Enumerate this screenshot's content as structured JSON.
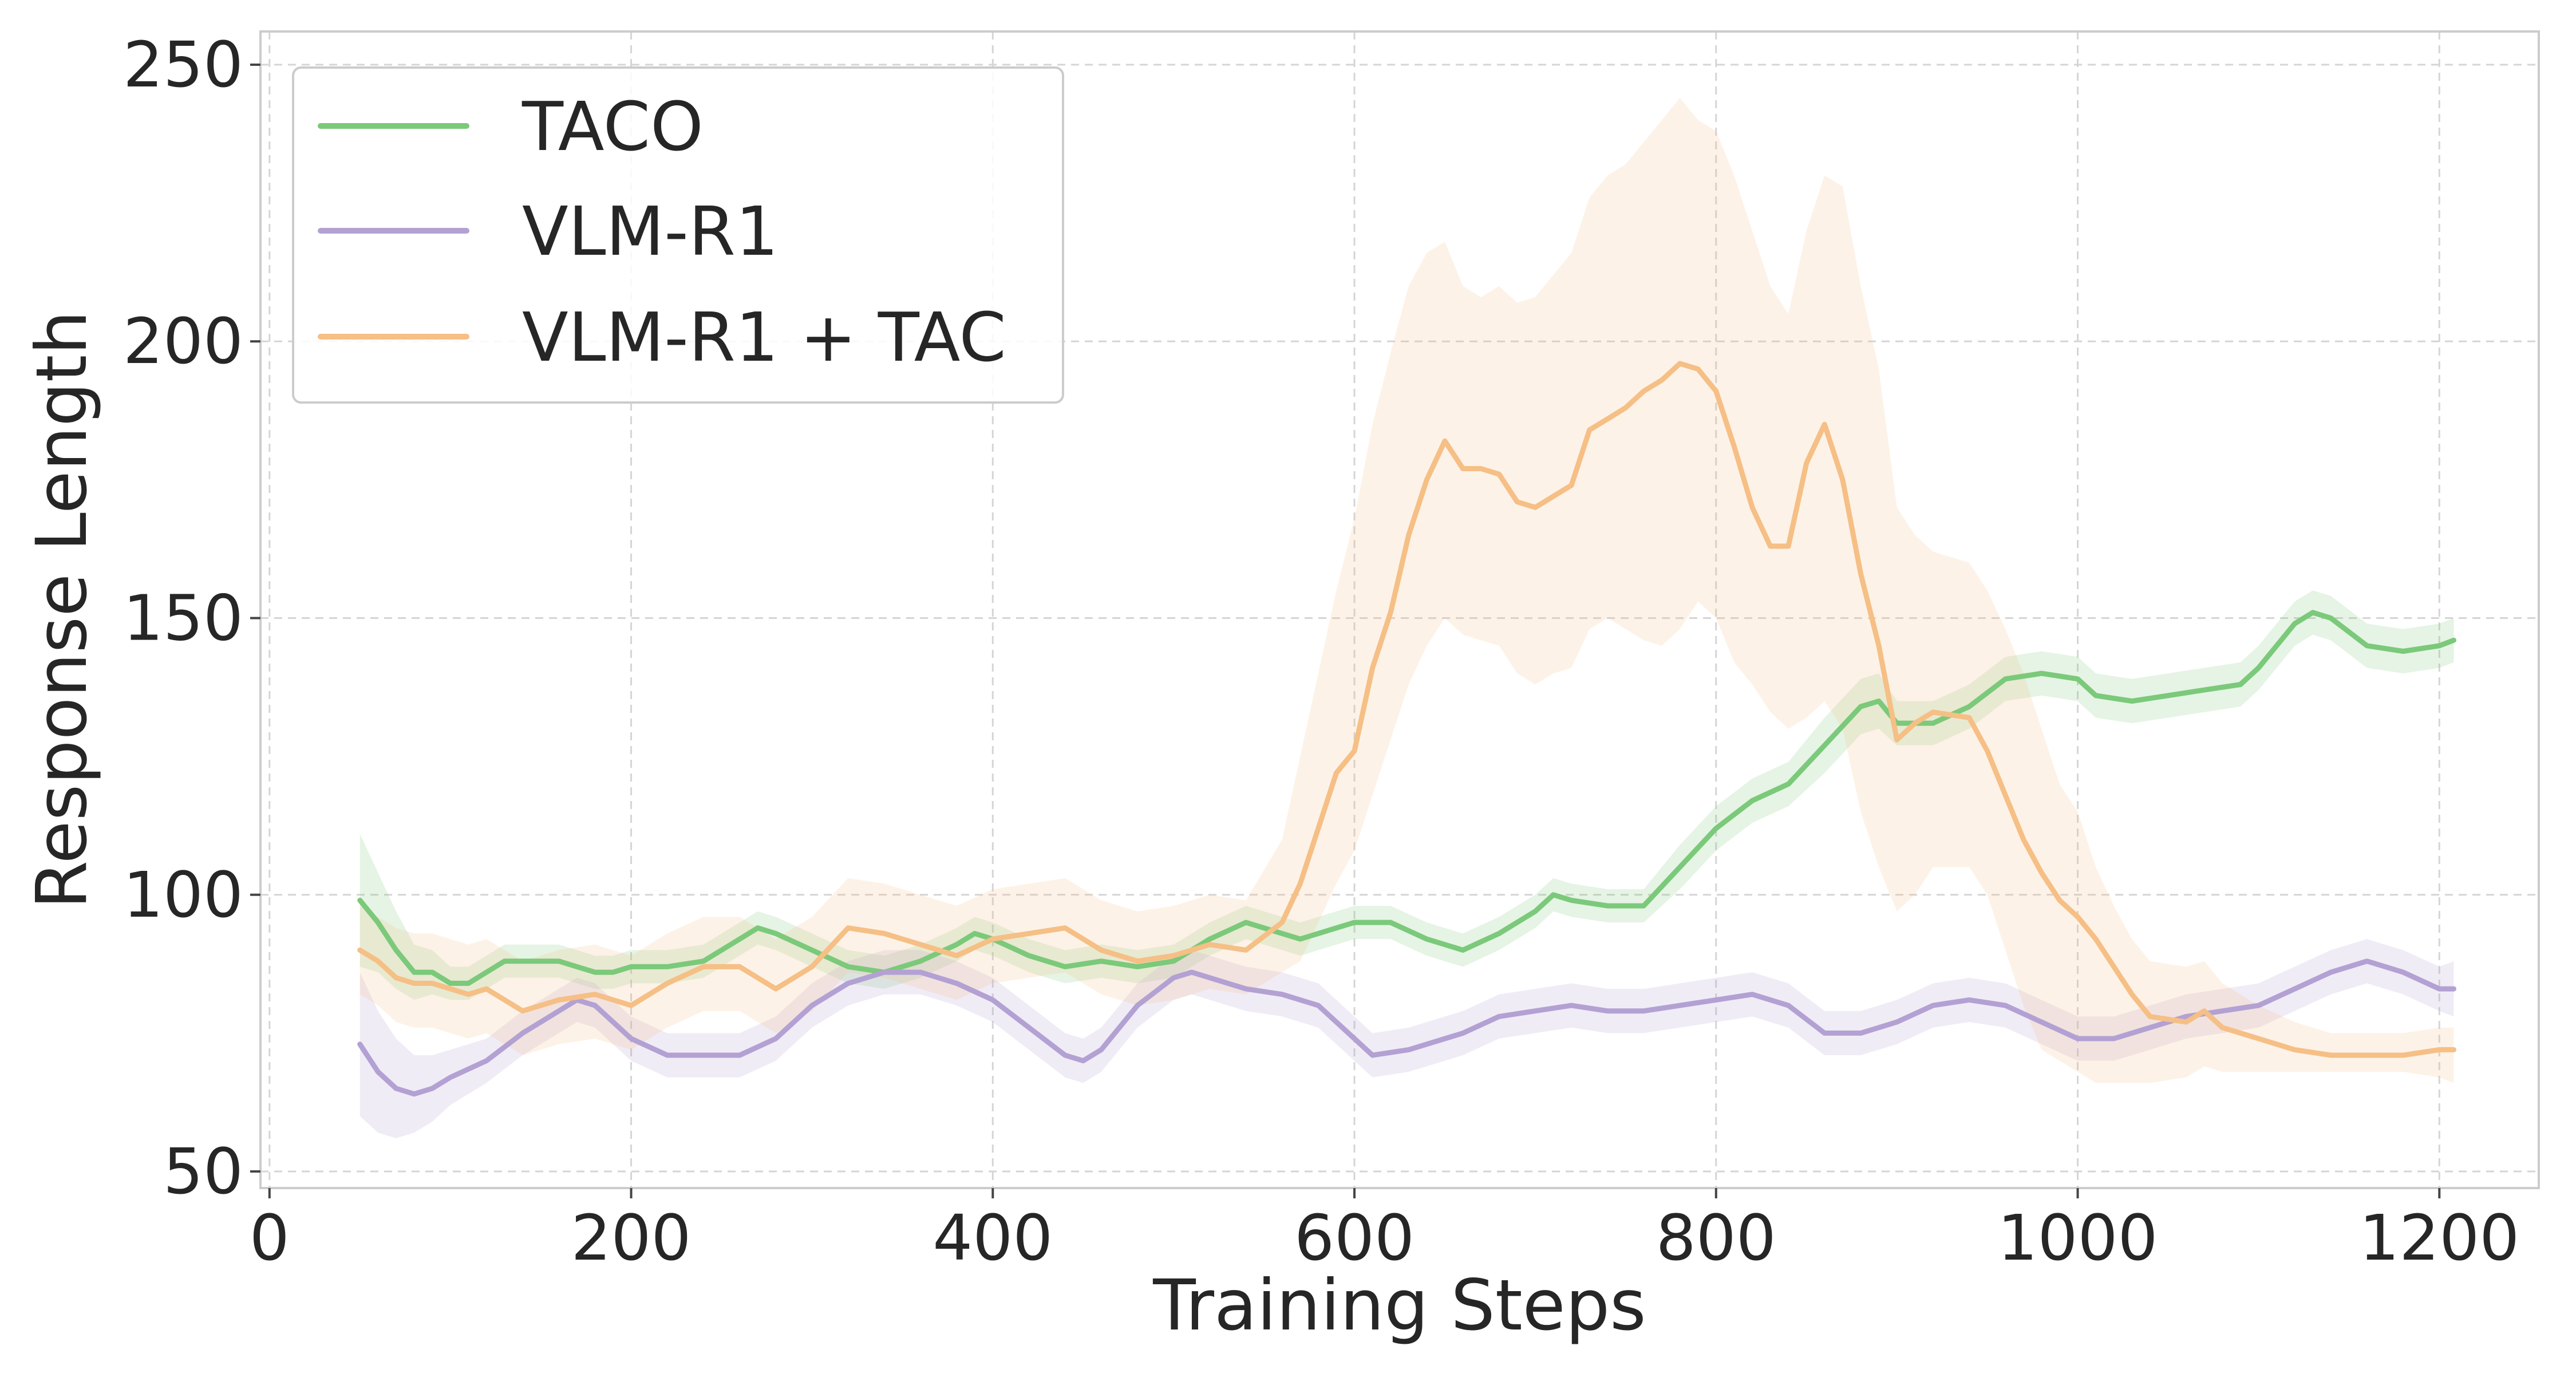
{
  "colors": {
    "TACO": "#7bc97a",
    "VLM-R1": "#b3a1d3",
    "VLM-R1 + TAC": "#f5bf85",
    "text": "#262626",
    "grid": "#d5d5d5"
  },
  "chart_data": {
    "type": "line",
    "title": "",
    "xlabel": "Training Steps",
    "ylabel": "Response Length",
    "xlim": [
      -5,
      1255
    ],
    "ylim": [
      47,
      256
    ],
    "xticks": [
      0,
      200,
      400,
      600,
      800,
      1000,
      1200
    ],
    "yticks": [
      50,
      100,
      150,
      200,
      250
    ],
    "x_tick_labels": [
      "0",
      "200",
      "400",
      "600",
      "800",
      "1000",
      "1200"
    ],
    "y_tick_labels": [
      "50",
      "100",
      "150",
      "200",
      "250"
    ],
    "grid": true,
    "legend_position": "top-left",
    "series": [
      {
        "name": "TACO",
        "band": "std",
        "points": [
          [
            50,
            99,
            12
          ],
          [
            60,
            95,
            9
          ],
          [
            70,
            90,
            7
          ],
          [
            80,
            86,
            5
          ],
          [
            90,
            86,
            4
          ],
          [
            100,
            84,
            3
          ],
          [
            110,
            84,
            3
          ],
          [
            120,
            86,
            3
          ],
          [
            130,
            88,
            3
          ],
          [
            140,
            88,
            3
          ],
          [
            150,
            88,
            3
          ],
          [
            160,
            88,
            3
          ],
          [
            170,
            87,
            3
          ],
          [
            180,
            86,
            3
          ],
          [
            190,
            86,
            3
          ],
          [
            200,
            87,
            3
          ],
          [
            220,
            87,
            3
          ],
          [
            240,
            88,
            3
          ],
          [
            260,
            92,
            3
          ],
          [
            270,
            94,
            3
          ],
          [
            280,
            93,
            3
          ],
          [
            300,
            90,
            3
          ],
          [
            320,
            87,
            3
          ],
          [
            340,
            86,
            3
          ],
          [
            360,
            88,
            3
          ],
          [
            380,
            91,
            3
          ],
          [
            390,
            93,
            3
          ],
          [
            400,
            92,
            3
          ],
          [
            420,
            89,
            3
          ],
          [
            440,
            87,
            3
          ],
          [
            460,
            88,
            3
          ],
          [
            480,
            87,
            3
          ],
          [
            500,
            88,
            3
          ],
          [
            520,
            92,
            3
          ],
          [
            540,
            95,
            3
          ],
          [
            560,
            93,
            3
          ],
          [
            570,
            92,
            3
          ],
          [
            580,
            93,
            3
          ],
          [
            600,
            95,
            3
          ],
          [
            620,
            95,
            3
          ],
          [
            640,
            92,
            3
          ],
          [
            660,
            90,
            3
          ],
          [
            680,
            93,
            3
          ],
          [
            700,
            97,
            3
          ],
          [
            710,
            100,
            3
          ],
          [
            720,
            99,
            3
          ],
          [
            740,
            98,
            3
          ],
          [
            760,
            98,
            3
          ],
          [
            780,
            105,
            4
          ],
          [
            800,
            112,
            4
          ],
          [
            820,
            117,
            4
          ],
          [
            840,
            120,
            4
          ],
          [
            860,
            127,
            5
          ],
          [
            880,
            134,
            5
          ],
          [
            890,
            135,
            5
          ],
          [
            900,
            131,
            4
          ],
          [
            920,
            131,
            4
          ],
          [
            940,
            134,
            4
          ],
          [
            960,
            139,
            4
          ],
          [
            980,
            140,
            4
          ],
          [
            1000,
            139,
            4
          ],
          [
            1010,
            136,
            4
          ],
          [
            1030,
            135,
            4
          ],
          [
            1050,
            136,
            4
          ],
          [
            1070,
            137,
            4
          ],
          [
            1090,
            138,
            4
          ],
          [
            1100,
            141,
            4
          ],
          [
            1120,
            149,
            4
          ],
          [
            1130,
            151,
            4
          ],
          [
            1140,
            150,
            4
          ],
          [
            1160,
            145,
            4
          ],
          [
            1180,
            144,
            4
          ],
          [
            1200,
            145,
            4
          ],
          [
            1208,
            146,
            4
          ]
        ]
      },
      {
        "name": "VLM-R1",
        "band": "std",
        "points": [
          [
            50,
            73,
            13
          ],
          [
            60,
            68,
            11
          ],
          [
            70,
            65,
            9
          ],
          [
            80,
            64,
            7
          ],
          [
            90,
            65,
            6
          ],
          [
            100,
            67,
            5
          ],
          [
            120,
            70,
            4
          ],
          [
            140,
            75,
            4
          ],
          [
            160,
            79,
            4
          ],
          [
            170,
            81,
            4
          ],
          [
            180,
            80,
            4
          ],
          [
            190,
            77,
            4
          ],
          [
            200,
            74,
            4
          ],
          [
            220,
            71,
            4
          ],
          [
            240,
            71,
            4
          ],
          [
            260,
            71,
            4
          ],
          [
            280,
            74,
            4
          ],
          [
            300,
            80,
            4
          ],
          [
            320,
            84,
            4
          ],
          [
            340,
            86,
            4
          ],
          [
            360,
            86,
            4
          ],
          [
            380,
            84,
            4
          ],
          [
            400,
            81,
            4
          ],
          [
            420,
            76,
            4
          ],
          [
            440,
            71,
            4
          ],
          [
            450,
            70,
            4
          ],
          [
            460,
            72,
            4
          ],
          [
            480,
            80,
            4
          ],
          [
            500,
            85,
            4
          ],
          [
            510,
            86,
            4
          ],
          [
            520,
            85,
            4
          ],
          [
            540,
            83,
            4
          ],
          [
            560,
            82,
            4
          ],
          [
            580,
            80,
            4
          ],
          [
            600,
            74,
            4
          ],
          [
            610,
            71,
            4
          ],
          [
            630,
            72,
            4
          ],
          [
            660,
            75,
            4
          ],
          [
            680,
            78,
            4
          ],
          [
            700,
            79,
            4
          ],
          [
            720,
            80,
            4
          ],
          [
            740,
            79,
            4
          ],
          [
            760,
            79,
            4
          ],
          [
            780,
            80,
            4
          ],
          [
            800,
            81,
            4
          ],
          [
            820,
            82,
            4
          ],
          [
            840,
            80,
            4
          ],
          [
            860,
            75,
            4
          ],
          [
            880,
            75,
            4
          ],
          [
            900,
            77,
            4
          ],
          [
            920,
            80,
            4
          ],
          [
            940,
            81,
            4
          ],
          [
            960,
            80,
            4
          ],
          [
            980,
            77,
            4
          ],
          [
            1000,
            74,
            4
          ],
          [
            1020,
            74,
            4
          ],
          [
            1040,
            76,
            4
          ],
          [
            1060,
            78,
            4
          ],
          [
            1080,
            79,
            4
          ],
          [
            1100,
            80,
            4
          ],
          [
            1120,
            83,
            4
          ],
          [
            1140,
            86,
            4
          ],
          [
            1160,
            88,
            4
          ],
          [
            1180,
            86,
            4
          ],
          [
            1200,
            83,
            4
          ],
          [
            1208,
            83,
            5
          ]
        ]
      },
      {
        "name": "VLM-R1 + TAC",
        "band": "range",
        "points": [
          [
            50,
            90,
            82,
            98
          ],
          [
            60,
            88,
            80,
            96
          ],
          [
            70,
            85,
            77,
            94
          ],
          [
            80,
            84,
            76,
            93
          ],
          [
            90,
            84,
            76,
            93
          ],
          [
            100,
            83,
            75,
            92
          ],
          [
            110,
            82,
            74,
            91
          ],
          [
            120,
            83,
            75,
            92
          ],
          [
            130,
            81,
            73,
            90
          ],
          [
            140,
            79,
            71,
            88
          ],
          [
            160,
            81,
            73,
            90
          ],
          [
            180,
            82,
            74,
            91
          ],
          [
            200,
            80,
            72,
            89
          ],
          [
            220,
            84,
            76,
            93
          ],
          [
            240,
            87,
            79,
            96
          ],
          [
            260,
            87,
            79,
            96
          ],
          [
            280,
            83,
            75,
            92
          ],
          [
            300,
            87,
            79,
            96
          ],
          [
            320,
            94,
            86,
            103
          ],
          [
            340,
            93,
            85,
            102
          ],
          [
            360,
            91,
            83,
            100
          ],
          [
            380,
            89,
            81,
            98
          ],
          [
            400,
            92,
            84,
            101
          ],
          [
            420,
            93,
            85,
            102
          ],
          [
            440,
            94,
            86,
            103
          ],
          [
            460,
            90,
            82,
            99
          ],
          [
            480,
            88,
            80,
            97
          ],
          [
            500,
            89,
            81,
            98
          ],
          [
            520,
            91,
            83,
            100
          ],
          [
            540,
            90,
            82,
            99
          ],
          [
            560,
            95,
            86,
            110
          ],
          [
            570,
            102,
            88,
            125
          ],
          [
            580,
            112,
            95,
            140
          ],
          [
            590,
            122,
            102,
            155
          ],
          [
            600,
            126,
            108,
            168
          ],
          [
            610,
            141,
            118,
            185
          ],
          [
            620,
            151,
            128,
            198
          ],
          [
            630,
            165,
            138,
            210
          ],
          [
            640,
            175,
            145,
            216
          ],
          [
            650,
            182,
            150,
            218
          ],
          [
            660,
            177,
            147,
            210
          ],
          [
            670,
            177,
            146,
            208
          ],
          [
            680,
            176,
            145,
            210
          ],
          [
            690,
            171,
            140,
            207
          ],
          [
            700,
            170,
            138,
            208
          ],
          [
            710,
            172,
            140,
            212
          ],
          [
            720,
            174,
            141,
            216
          ],
          [
            730,
            184,
            148,
            226
          ],
          [
            740,
            186,
            150,
            230
          ],
          [
            750,
            188,
            148,
            232
          ],
          [
            760,
            191,
            146,
            236
          ],
          [
            770,
            193,
            145,
            240
          ],
          [
            780,
            196,
            148,
            244
          ],
          [
            790,
            195,
            153,
            240
          ],
          [
            800,
            191,
            150,
            238
          ],
          [
            810,
            181,
            142,
            230
          ],
          [
            820,
            170,
            138,
            220
          ],
          [
            830,
            163,
            133,
            210
          ],
          [
            840,
            163,
            130,
            205
          ],
          [
            850,
            178,
            132,
            220
          ],
          [
            860,
            185,
            135,
            230
          ],
          [
            870,
            175,
            130,
            228
          ],
          [
            880,
            158,
            115,
            210
          ],
          [
            890,
            145,
            105,
            195
          ],
          [
            900,
            128,
            97,
            170
          ],
          [
            910,
            131,
            100,
            165
          ],
          [
            920,
            133,
            105,
            162
          ],
          [
            940,
            132,
            105,
            160
          ],
          [
            950,
            126,
            100,
            155
          ],
          [
            960,
            118,
            90,
            148
          ],
          [
            970,
            110,
            80,
            140
          ],
          [
            980,
            104,
            72,
            130
          ],
          [
            990,
            99,
            70,
            120
          ],
          [
            1000,
            96,
            68,
            115
          ],
          [
            1010,
            92,
            66,
            105
          ],
          [
            1020,
            87,
            66,
            98
          ],
          [
            1030,
            82,
            66,
            92
          ],
          [
            1040,
            78,
            66,
            88
          ],
          [
            1060,
            77,
            67,
            87
          ],
          [
            1070,
            79,
            69,
            88
          ],
          [
            1080,
            76,
            68,
            84
          ],
          [
            1100,
            74,
            68,
            80
          ],
          [
            1120,
            72,
            68,
            77
          ],
          [
            1140,
            71,
            68,
            75
          ],
          [
            1160,
            71,
            68,
            75
          ],
          [
            1180,
            71,
            68,
            75
          ],
          [
            1200,
            72,
            67,
            76
          ],
          [
            1208,
            72,
            66,
            76
          ]
        ]
      }
    ]
  }
}
